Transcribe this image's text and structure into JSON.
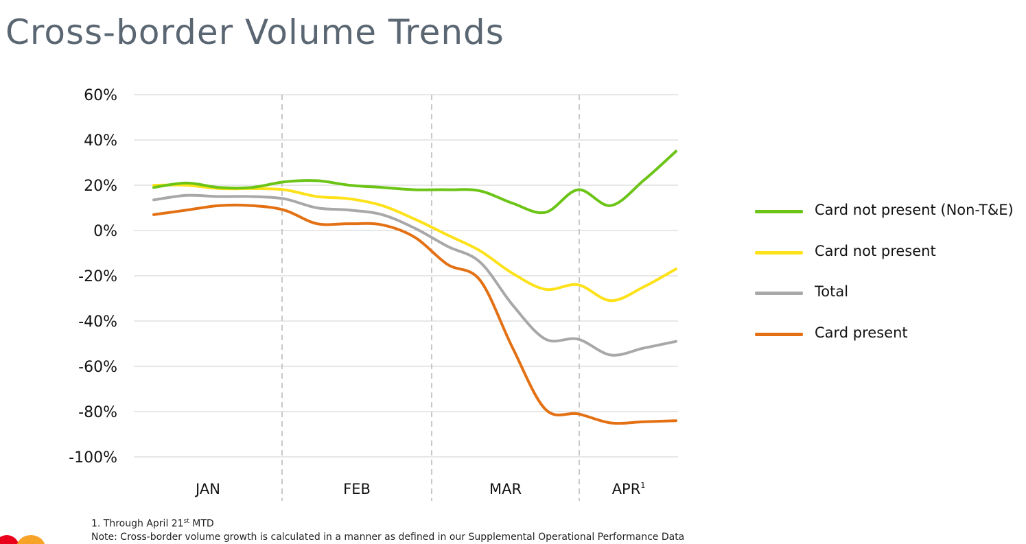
{
  "page_title": "Cross-border Volume Trends",
  "footnotes": {
    "note1_prefix": "1.  Through April 21",
    "note1_sup": "st",
    "note1_suffix": " MTD",
    "note2": "Note: Cross-border volume growth is calculated in a manner as defined in our Supplemental Operational Performance Data"
  },
  "chart_data": {
    "type": "line",
    "title": "Cross-border Volume Trends",
    "ylim": [
      -100,
      60
    ],
    "yticks": [
      60,
      40,
      20,
      0,
      -20,
      -40,
      -60,
      -80,
      -100
    ],
    "ytick_labels": [
      "60%",
      "40%",
      "20%",
      "0%",
      "-20%",
      "-40%",
      "-60%",
      "-80%",
      "-100%"
    ],
    "months": [
      {
        "label": "JAN",
        "sup": ""
      },
      {
        "label": "FEB",
        "sup": ""
      },
      {
        "label": "MAR",
        "sup": ""
      },
      {
        "label": "APR",
        "sup": "1"
      }
    ],
    "grid": true,
    "legend_position": "right",
    "x_position_range": [
      0,
      16
    ],
    "series": [
      {
        "name": "Card not present (Non-T&E)",
        "color": "#6cc417",
        "x": [
          0,
          1,
          2,
          3,
          4,
          5,
          6,
          7,
          8,
          9,
          10,
          11,
          12,
          13,
          14,
          15,
          16
        ],
        "values": [
          19,
          21,
          19,
          19,
          21.5,
          22,
          20,
          19,
          18,
          18,
          17.5,
          12,
          8,
          18,
          11,
          22,
          35
        ]
      },
      {
        "name": "Card not present",
        "color": "#fde119",
        "x": [
          0,
          1,
          2,
          3,
          4,
          5,
          6,
          7,
          8,
          9,
          10,
          11,
          12,
          13,
          14,
          15,
          16
        ],
        "values": [
          20,
          20,
          18.5,
          18.5,
          18,
          15,
          14,
          11,
          5,
          -2,
          -9,
          -19,
          -26,
          -24,
          -31,
          -25,
          -17
        ]
      },
      {
        "name": "Total",
        "color": "#a8a8a8",
        "x": [
          0,
          1,
          2,
          3,
          4,
          5,
          6,
          7,
          8,
          9,
          10,
          11,
          12,
          13,
          14,
          15,
          16
        ],
        "values": [
          13.5,
          15.5,
          15,
          15,
          14,
          10,
          9,
          7,
          1,
          -7,
          -14,
          -33,
          -48,
          -48,
          -55,
          -52,
          -49
        ]
      },
      {
        "name": "Card present",
        "color": "#e37114",
        "x": [
          0,
          1,
          2,
          3,
          4,
          5,
          6,
          7,
          8,
          9,
          10,
          11,
          12,
          13,
          14,
          15,
          16
        ],
        "values": [
          7,
          9,
          11,
          11,
          9,
          3,
          3,
          2.5,
          -3,
          -15,
          -22,
          -52,
          -79,
          -81,
          -85,
          -84.5,
          -84
        ]
      }
    ]
  }
}
